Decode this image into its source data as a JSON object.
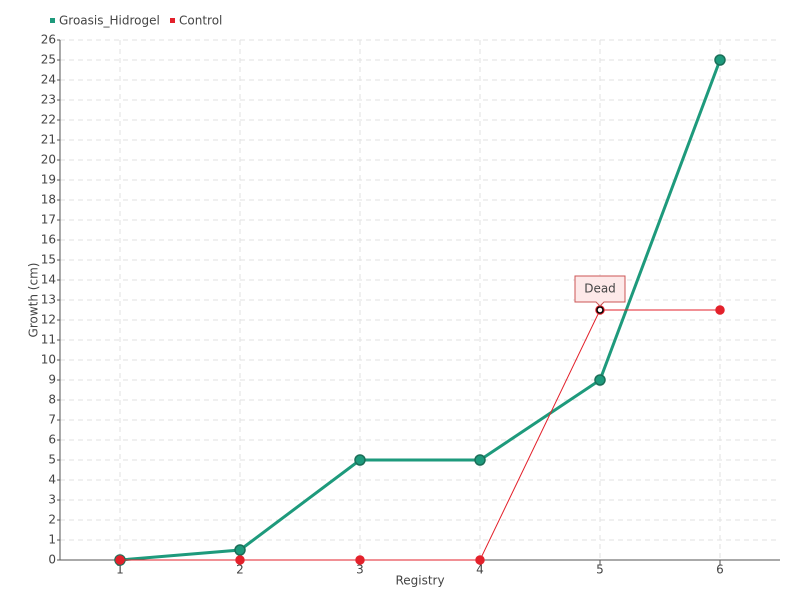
{
  "chart_data": {
    "type": "line",
    "x_label": "Registry",
    "y_label": "Growth (cm)",
    "x": [
      1,
      2,
      3,
      4,
      5,
      6
    ],
    "series": [
      {
        "name": "Groasis_Hidrogel",
        "color": "#1e9a7c",
        "values": [
          0,
          0.5,
          5,
          5,
          9,
          25
        ]
      },
      {
        "name": "Control",
        "color": "#e3212b",
        "values": [
          0,
          0,
          0,
          0,
          12.5,
          12.5
        ]
      }
    ],
    "xlim": [
      0.5,
      6.5
    ],
    "xticks": [
      1,
      2,
      3,
      4,
      5,
      6
    ],
    "ylim": [
      0,
      26
    ],
    "yticks": [
      0,
      1,
      2,
      3,
      4,
      5,
      6,
      7,
      8,
      9,
      10,
      11,
      12,
      13,
      14,
      15,
      16,
      17,
      18,
      19,
      20,
      21,
      22,
      23,
      24,
      25,
      26
    ],
    "grid": true,
    "legend": "top-left",
    "annotations": [
      {
        "text": "Dead",
        "x": 5,
        "y": 12.5
      }
    ]
  }
}
